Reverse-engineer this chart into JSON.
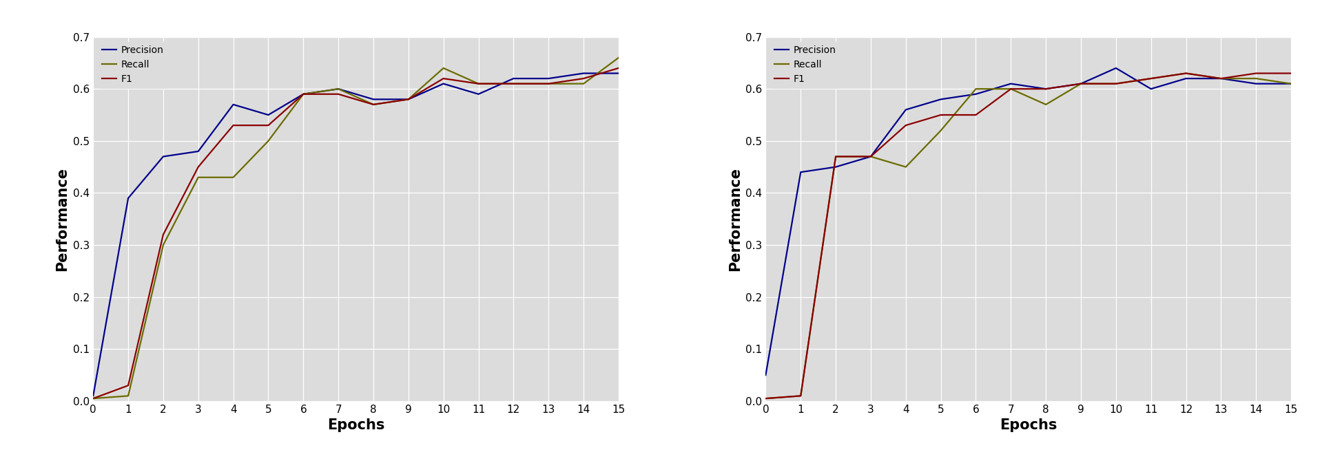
{
  "xlabel": "Epochs",
  "ylabel": "Performance",
  "xlim": [
    0,
    15
  ],
  "ylim": [
    0.0,
    0.7
  ],
  "yticks": [
    0.0,
    0.1,
    0.2,
    0.3,
    0.4,
    0.5,
    0.6,
    0.7
  ],
  "xticks": [
    0,
    1,
    2,
    3,
    4,
    5,
    6,
    7,
    8,
    9,
    10,
    11,
    12,
    13,
    14,
    15
  ],
  "precision_color": "#00008B",
  "recall_color": "#6B6B00",
  "f1_color": "#8B0000",
  "bg_color": "#DCDCDC",
  "cbow": {
    "precision": [
      0.01,
      0.39,
      0.47,
      0.48,
      0.57,
      0.55,
      0.59,
      0.6,
      0.58,
      0.58,
      0.61,
      0.59,
      0.62,
      0.62,
      0.63,
      0.63
    ],
    "recall": [
      0.005,
      0.01,
      0.3,
      0.43,
      0.43,
      0.5,
      0.59,
      0.6,
      0.57,
      0.58,
      0.64,
      0.61,
      0.61,
      0.61,
      0.61,
      0.66
    ],
    "f1": [
      0.005,
      0.03,
      0.32,
      0.45,
      0.53,
      0.53,
      0.59,
      0.59,
      0.57,
      0.58,
      0.62,
      0.61,
      0.61,
      0.61,
      0.62,
      0.64
    ]
  },
  "skipgram": {
    "precision": [
      0.05,
      0.44,
      0.45,
      0.47,
      0.56,
      0.58,
      0.59,
      0.61,
      0.6,
      0.61,
      0.64,
      0.6,
      0.62,
      0.62,
      0.61,
      0.61
    ],
    "recall": [
      0.005,
      0.01,
      0.47,
      0.47,
      0.45,
      0.52,
      0.6,
      0.6,
      0.57,
      0.61,
      0.61,
      0.62,
      0.63,
      0.62,
      0.62,
      0.61
    ],
    "f1": [
      0.005,
      0.01,
      0.47,
      0.47,
      0.53,
      0.55,
      0.55,
      0.6,
      0.6,
      0.61,
      0.61,
      0.62,
      0.63,
      0.62,
      0.63,
      0.63
    ]
  },
  "legend_labels": [
    "Precision",
    "Recall",
    "F1"
  ],
  "line_width": 1.6,
  "fig_width": 19.32,
  "fig_height": 6.7,
  "label_fontsize": 15,
  "tick_fontsize": 11,
  "legend_fontsize": 10
}
